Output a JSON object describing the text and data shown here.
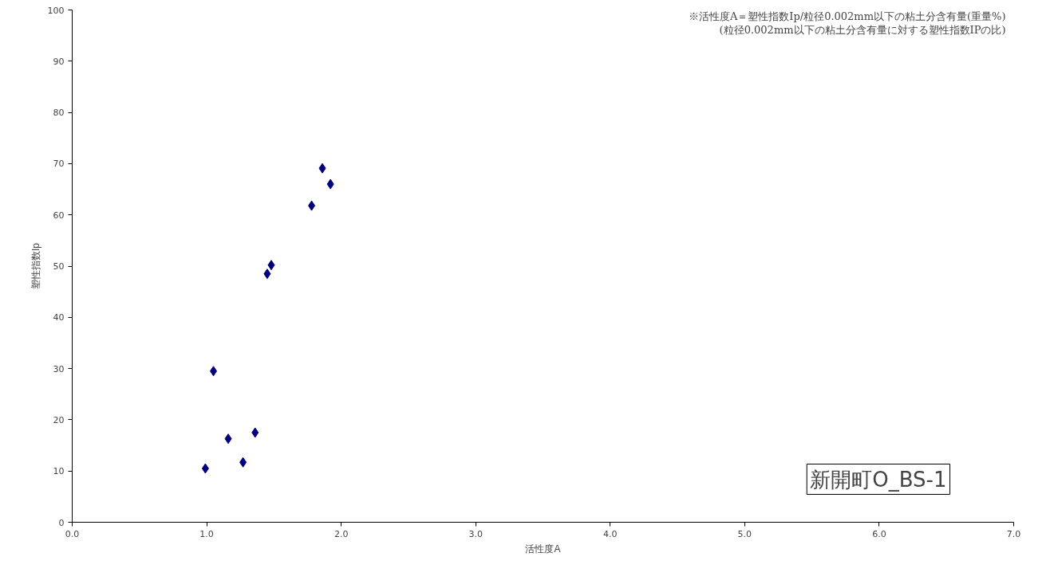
{
  "chart_data": {
    "type": "scatter",
    "xlabel": "活性度A",
    "ylabel": "塑性指数Ip",
    "x": [
      0.99,
      1.05,
      1.16,
      1.27,
      1.36,
      1.45,
      1.48,
      1.78,
      1.86,
      1.92
    ],
    "series": [
      {
        "color": "#000080",
        "values": [
          10.5,
          29.5,
          16.3,
          11.7,
          17.5,
          48.5,
          50.2,
          61.8,
          69.1,
          66.0
        ]
      }
    ],
    "marker": "diamond",
    "grid": false,
    "xlim": [
      0,
      7
    ],
    "ylim": [
      0,
      100
    ],
    "xticks": [
      {
        "value": 0,
        "label": "0.0"
      },
      {
        "value": 1,
        "label": "1.0"
      },
      {
        "value": 2,
        "label": "2.0"
      },
      {
        "value": 3,
        "label": "3.0"
      },
      {
        "value": 4,
        "label": "4.0"
      },
      {
        "value": 5,
        "label": "5.0"
      },
      {
        "value": 6,
        "label": "6.0"
      },
      {
        "value": 7,
        "label": "7.0"
      }
    ],
    "yticks": [
      0,
      10,
      20,
      30,
      40,
      50,
      60,
      70,
      80,
      90,
      100
    ],
    "annotations": [
      "※活性度A＝塑性指数Ip/粒径0.002mm以下の粘土分含有量(重量%)",
      "(粒径0.002mm以下の粘土分含有量に対する塑性指数IPの比)",
      "新開町O_BS-1"
    ]
  }
}
